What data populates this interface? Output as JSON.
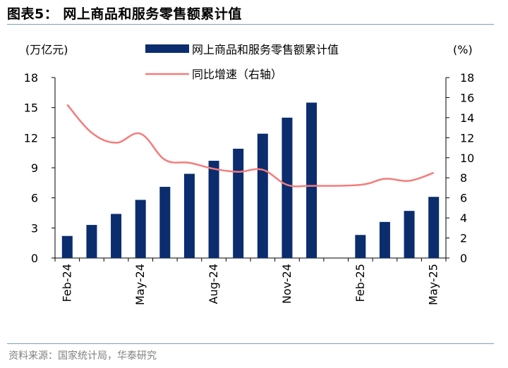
{
  "figure_title": "图表5：  网上商品和服务零售额累计值",
  "source_note": "资料来源：国家统计局，华泰研究",
  "chart_data": {
    "type": "bar",
    "left_unit": "(万亿元)",
    "right_unit": "(%)",
    "legend": [
      {
        "name": "网上商品和服务零售额累计值",
        "kind": "bar",
        "color": "#0b2d6e"
      },
      {
        "name": "同比增速（右轴）",
        "kind": "line",
        "color": "#f47c7c"
      }
    ],
    "legend_placement": "top-center",
    "categories": [
      "Feb-24",
      "Mar-24",
      "Apr-24",
      "May-24",
      "Jun-24",
      "Jul-24",
      "Aug-24",
      "Sep-24",
      "Oct-24",
      "Nov-24",
      "Dec-24",
      "Jan-25",
      "Feb-25",
      "Mar-25",
      "Apr-25",
      "May-25"
    ],
    "x_tick_labels": [
      "Feb-24",
      "May-24",
      "Aug-24",
      "Nov-24",
      "Feb-25",
      "May-25"
    ],
    "series": [
      {
        "name": "网上商品和服务零售额累计值",
        "axis": "left",
        "values": [
          2.2,
          3.3,
          4.4,
          5.8,
          7.1,
          8.4,
          9.7,
          10.9,
          12.4,
          14.0,
          15.5,
          null,
          2.3,
          3.6,
          4.7,
          6.1
        ]
      },
      {
        "name": "同比增速（右轴）",
        "axis": "right",
        "values": [
          15.3,
          12.5,
          11.5,
          12.4,
          9.8,
          9.5,
          8.9,
          8.6,
          8.8,
          7.3,
          7.2,
          null,
          7.3,
          7.9,
          7.7,
          8.5
        ]
      }
    ],
    "y_left": {
      "min": 0,
      "max": 18,
      "ticks": [
        0,
        3,
        6,
        9,
        12,
        15,
        18
      ]
    },
    "y_right": {
      "min": 0,
      "max": 18,
      "ticks": [
        0,
        2,
        4,
        6,
        8,
        10,
        12,
        14,
        16,
        18
      ]
    },
    "grid": false
  }
}
